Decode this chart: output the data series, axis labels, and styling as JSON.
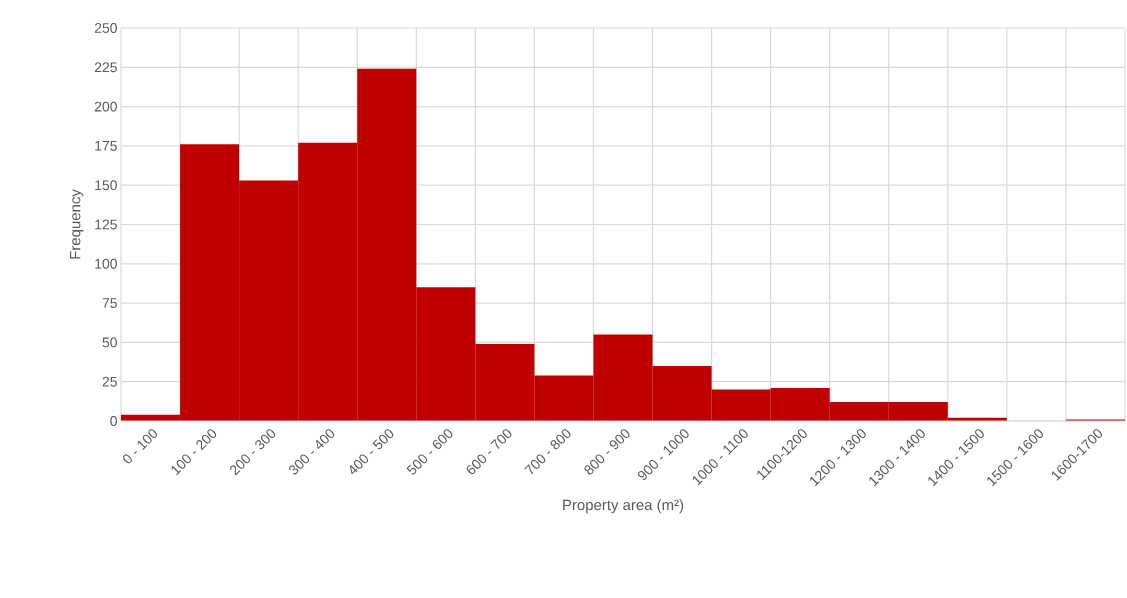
{
  "chart_data": {
    "type": "bar",
    "xlabel": "Property area (m²)",
    "ylabel": "Frequency",
    "categories": [
      "0 - 100",
      "100 - 200",
      "200 - 300",
      "300 - 400",
      "400 - 500",
      "500 - 600",
      "600 - 700",
      "700 - 800",
      "800 - 900",
      "900 - 1000",
      "1000 - 1100",
      "1100-1200",
      "1200 - 1300",
      "1300 - 1400",
      "1400 - 1500",
      "1500 - 1600",
      "1600-1700"
    ],
    "values": [
      4,
      176,
      153,
      177,
      224,
      85,
      49,
      29,
      55,
      35,
      20,
      21,
      12,
      12,
      2,
      0,
      1
    ],
    "color": "#c00000",
    "ylim": [
      0,
      250
    ],
    "yticks": [
      0,
      25,
      50,
      75,
      100,
      125,
      150,
      175,
      200,
      225,
      250
    ],
    "grid": true
  }
}
